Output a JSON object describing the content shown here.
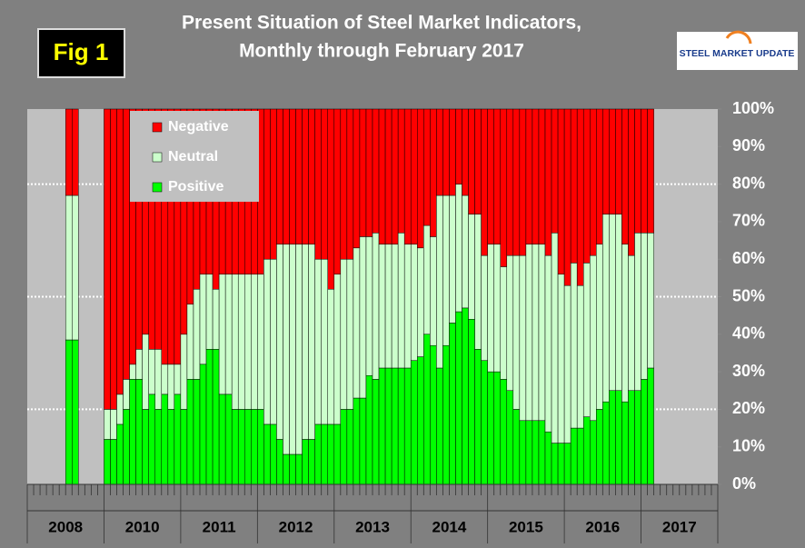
{
  "chart_data": {
    "type": "stacked_bar",
    "figure_label": "Fig 1",
    "title": [
      "Present Situation of Steel Market Indicators,",
      "Monthly through February 2017"
    ],
    "logo": "STEEL MARKET UPDATE",
    "categories": [
      null,
      null,
      null,
      null,
      null,
      null,
      null,
      null,
      null,
      null,
      null,
      null,
      null,
      null,
      null,
      null,
      null,
      null,
      null,
      null,
      null,
      null,
      null,
      null,
      null,
      null,
      null,
      null,
      null,
      null,
      null,
      null,
      null,
      null,
      null,
      null,
      null,
      null,
      null,
      null,
      null,
      null,
      null,
      null,
      null,
      null,
      null,
      null,
      null,
      null,
      null,
      null,
      null,
      null,
      null,
      null,
      null,
      null,
      null,
      null,
      null,
      null,
      null,
      null,
      null,
      null,
      null,
      null,
      null,
      null,
      null,
      null,
      null,
      null,
      null,
      null,
      null,
      null,
      null,
      null,
      null,
      null,
      null,
      null,
      null,
      null,
      null,
      null,
      null,
      null,
      null,
      null,
      null,
      null,
      null,
      null,
      null,
      null,
      null,
      null,
      null,
      null,
      null,
      null,
      null,
      null,
      null,
      null
    ],
    "x_groups": [
      "2008",
      "2010",
      "2011",
      "2012",
      "2013",
      "2014",
      "2015",
      "2016",
      "2017"
    ],
    "series": [
      {
        "name": "Positive",
        "color": "#00ff00",
        "values": [
          null,
          null,
          null,
          null,
          null,
          null,
          38.5,
          38.5,
          null,
          null,
          null,
          null,
          12,
          12,
          16,
          20,
          28,
          28,
          20,
          24,
          20,
          24,
          20,
          24,
          20,
          28,
          28,
          32,
          36,
          36,
          24,
          24,
          20,
          20,
          20,
          20,
          20,
          16,
          16,
          12,
          8,
          8,
          8,
          12,
          12,
          16,
          16,
          16,
          16,
          20,
          20,
          23,
          23,
          29,
          28,
          31,
          31,
          31,
          31,
          31,
          33,
          34,
          40,
          37,
          31,
          37,
          43,
          46,
          47,
          44,
          36,
          33,
          30,
          30,
          28,
          25,
          20,
          17,
          17,
          17,
          17,
          14,
          11,
          11,
          11,
          15,
          15,
          18,
          17,
          20,
          22,
          25,
          25,
          22,
          25,
          25,
          28,
          31,
          null,
          null,
          null,
          null,
          null,
          null,
          null,
          null,
          null,
          null
        ]
      },
      {
        "name": "Neutral",
        "color": "#ccffcc",
        "values": [
          null,
          null,
          null,
          null,
          null,
          null,
          38.5,
          38.5,
          null,
          null,
          null,
          null,
          8,
          8,
          8,
          8,
          4,
          8,
          20,
          12,
          16,
          8,
          12,
          8,
          20,
          20,
          24,
          24,
          20,
          16,
          32,
          32,
          36,
          36,
          36,
          36,
          36,
          44,
          44,
          52,
          56,
          56,
          56,
          52,
          52,
          44,
          44,
          36,
          40,
          40,
          40,
          40,
          43,
          37,
          39,
          33,
          33,
          33,
          36,
          33,
          31,
          29,
          29,
          29,
          46,
          40,
          34,
          34,
          30,
          28,
          36,
          28,
          34,
          34,
          30,
          36,
          41,
          44,
          47,
          47,
          47,
          47,
          56,
          45,
          42,
          44,
          38,
          41,
          44,
          44,
          50,
          47,
          47,
          42,
          36,
          42,
          39,
          36,
          null,
          null,
          null,
          null,
          null,
          null,
          null,
          null,
          null,
          null
        ]
      },
      {
        "name": "Negative",
        "color": "#ff0000",
        "values": [
          null,
          null,
          null,
          null,
          null,
          null,
          23,
          23,
          null,
          null,
          null,
          null,
          80,
          80,
          76,
          72,
          68,
          64,
          60,
          64,
          64,
          68,
          68,
          68,
          60,
          52,
          48,
          44,
          44,
          48,
          44,
          44,
          44,
          44,
          44,
          44,
          44,
          40,
          40,
          36,
          36,
          36,
          36,
          36,
          36,
          40,
          40,
          48,
          44,
          40,
          40,
          37,
          34,
          34,
          33,
          36,
          36,
          36,
          33,
          36,
          36,
          37,
          31,
          34,
          23,
          23,
          23,
          20,
          23,
          28,
          28,
          39,
          36,
          36,
          42,
          39,
          39,
          39,
          36,
          36,
          36,
          39,
          33,
          44,
          47,
          41,
          47,
          41,
          39,
          36,
          28,
          28,
          28,
          36,
          39,
          33,
          33,
          33,
          null,
          null,
          null,
          null,
          null,
          null,
          null,
          null,
          null,
          null
        ]
      }
    ],
    "ylim": [
      0,
      100
    ],
    "yticks": [
      {
        "value": 0,
        "label": "0%"
      },
      {
        "value": 10,
        "label": "10%"
      },
      {
        "value": 20,
        "label": "20%"
      },
      {
        "value": 30,
        "label": "30%"
      },
      {
        "value": 40,
        "label": "40%"
      },
      {
        "value": 50,
        "label": "50%"
      },
      {
        "value": 60,
        "label": "60%"
      },
      {
        "value": 70,
        "label": "70%"
      },
      {
        "value": 80,
        "label": "80%"
      },
      {
        "value": 90,
        "label": "90%"
      },
      {
        "value": 100,
        "label": "100%"
      }
    ],
    "reference_lines": [
      20,
      50,
      80
    ],
    "legend": "top-left"
  }
}
